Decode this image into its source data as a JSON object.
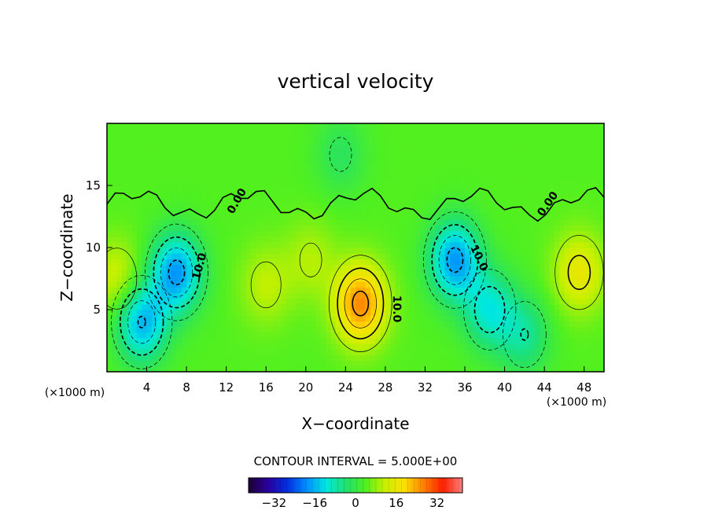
{
  "chart_data": {
    "type": "heatmap",
    "title": "vertical velocity",
    "xlabel": "X−coordinate",
    "ylabel": "Z−coordinate",
    "x_unit_left": "(×1000 m)",
    "x_unit_right": "(×1000 m)",
    "x_ticks": [
      "4",
      "8",
      "12",
      "16",
      "20",
      "24",
      "28",
      "32",
      "36",
      "40",
      "44",
      "48"
    ],
    "y_ticks": [
      "5",
      "10",
      "15"
    ],
    "xlim": [
      0,
      50
    ],
    "ylim": [
      0,
      20
    ],
    "contour_interval_label": "CONTOUR INTERVAL = 5.000E+00",
    "contour_labels": [
      "10.0",
      "10.0",
      "10.0",
      "0.00",
      "0.00"
    ],
    "colorbar": {
      "range": [
        -42,
        42
      ],
      "tick_labels": [
        "−32",
        "−16",
        "0",
        "16",
        "32"
      ],
      "tick_values": [
        -32,
        -16,
        0,
        16,
        32
      ],
      "colors": [
        "#1a0032",
        "#2b00a0",
        "#0030e0",
        "#0090ff",
        "#00e8e0",
        "#20e070",
        "#50f020",
        "#c8f000",
        "#ffe000",
        "#ff8000",
        "#ff2000",
        "#ff8080"
      ]
    },
    "features": [
      {
        "kind": "updraft",
        "x": 25.5,
        "z": 5.5,
        "peak": 22
      },
      {
        "kind": "updraft",
        "x": 47.5,
        "z": 8,
        "peak": 12
      },
      {
        "kind": "updraft",
        "x": 1,
        "z": 7.5,
        "peak": 9
      },
      {
        "kind": "updraft",
        "x": 16,
        "z": 7,
        "peak": 7
      },
      {
        "kind": "updraft",
        "x": 20.5,
        "z": 9,
        "peak": 6
      },
      {
        "kind": "downdraft",
        "x": 7,
        "z": 8,
        "peak": -22
      },
      {
        "kind": "downdraft",
        "x": 3.5,
        "z": 4,
        "peak": -20
      },
      {
        "kind": "downdraft",
        "x": 35,
        "z": 9,
        "peak": -22
      },
      {
        "kind": "downdraft",
        "x": 38.5,
        "z": 5,
        "peak": -14
      },
      {
        "kind": "downdraft",
        "x": 42,
        "z": 3,
        "peak": -10
      },
      {
        "kind": "downdraft",
        "x": 23.5,
        "z": 17.5,
        "peak": -6
      }
    ]
  }
}
